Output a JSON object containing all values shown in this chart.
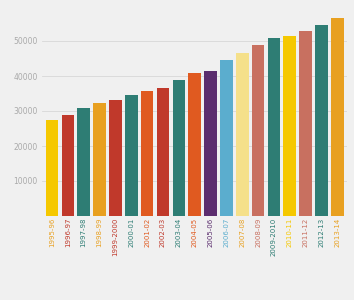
{
  "categories": [
    "1995-96",
    "1996-97",
    "1997-98",
    "1998-99",
    "1999-2000",
    "2000-01",
    "2001-02",
    "2002-03",
    "2003-04",
    "2004-05",
    "2005-06",
    "2006-07",
    "2007-08",
    "2008-09",
    "2009-2010",
    "2010-11",
    "2011-12",
    "2012-13",
    "2013-14"
  ],
  "values": [
    27500,
    29000,
    31000,
    32200,
    33200,
    34600,
    35600,
    36500,
    38800,
    41000,
    41500,
    44700,
    46500,
    49000,
    51000,
    51500,
    53000,
    54500,
    56500
  ],
  "bar_colors": [
    "#f5c800",
    "#c0392b",
    "#2e7d74",
    "#e8a020",
    "#c0392b",
    "#2e7d74",
    "#e05a20",
    "#c0392b",
    "#2e7d74",
    "#e05a20",
    "#5b2d6e",
    "#5badce",
    "#f5e08a",
    "#c87060",
    "#2e7d74",
    "#f5c800",
    "#c87060",
    "#2e7d74",
    "#e8a020"
  ],
  "tick_colors": [
    "#e8a020",
    "#c0392b",
    "#2e7d74",
    "#e8a020",
    "#c0392b",
    "#2e7d74",
    "#e05a20",
    "#c0392b",
    "#2e7d74",
    "#e05a20",
    "#5b2d6e",
    "#5badce",
    "#e8a020",
    "#c87060",
    "#2e7d74",
    "#f5c800",
    "#c87060",
    "#2e7d74",
    "#e8a020"
  ],
  "ylim": [
    0,
    60000
  ],
  "yticks": [
    0,
    10000,
    20000,
    30000,
    40000,
    50000
  ],
  "background_color": "#f0f0f0",
  "grid_color": "#d8d8d8",
  "bar_width": 0.8
}
